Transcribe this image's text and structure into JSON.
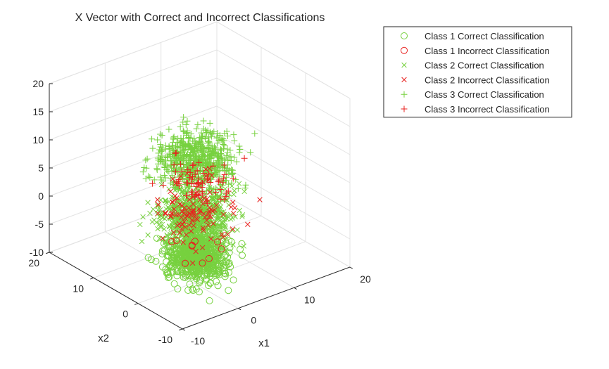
{
  "chart_data": {
    "type": "scatter",
    "title": "X Vector with Correct and Incorrect Classifications",
    "xlabel": "x1",
    "ylabel": "x2",
    "zlabel": "",
    "xlim": [
      -10,
      20
    ],
    "ylim": [
      -10,
      20
    ],
    "zlim": [
      -10,
      20
    ],
    "x_ticks": [
      "-10",
      "0",
      "10",
      "20"
    ],
    "y_ticks": [
      "-10",
      "0",
      "10",
      "20"
    ],
    "z_ticks": [
      "-10",
      "-5",
      "0",
      "5",
      "10",
      "15",
      "20"
    ],
    "grid": true,
    "legend_position": "top-right",
    "colors": {
      "correct": "#77d13f",
      "incorrect": "#e8211f"
    },
    "series": [
      {
        "name": "Class 1 Correct Classification",
        "marker": "circle",
        "color": "#77d13f",
        "cluster": {
          "center": [
            2,
            2,
            -7
          ],
          "spread": [
            2.2,
            2.2,
            1.8
          ],
          "count": 650
        }
      },
      {
        "name": "Class 1 Incorrect Classification",
        "marker": "circle",
        "color": "#e8211f",
        "cluster": {
          "center": [
            2,
            2,
            -6
          ],
          "spread": [
            2.6,
            2.6,
            1.6
          ],
          "count": 10
        }
      },
      {
        "name": "Class 2 Correct Classification",
        "marker": "x",
        "color": "#77d13f",
        "cluster": {
          "center": [
            2,
            2,
            0
          ],
          "spread": [
            2.5,
            2.5,
            2.0
          ],
          "count": 650
        }
      },
      {
        "name": "Class 2 Incorrect Classification",
        "marker": "x",
        "color": "#e8211f",
        "cluster": {
          "center": [
            2,
            2,
            1
          ],
          "spread": [
            2.5,
            2.5,
            2.6
          ],
          "count": 110
        }
      },
      {
        "name": "Class 3 Correct Classification",
        "marker": "plus",
        "color": "#77d13f",
        "cluster": {
          "center": [
            2,
            2,
            10
          ],
          "spread": [
            2.6,
            2.6,
            2.4
          ],
          "count": 650
        }
      },
      {
        "name": "Class 3 Incorrect Classification",
        "marker": "plus",
        "color": "#e8211f",
        "cluster": {
          "center": [
            2,
            2,
            6
          ],
          "spread": [
            2.6,
            2.6,
            1.6
          ],
          "count": 70
        }
      }
    ]
  }
}
